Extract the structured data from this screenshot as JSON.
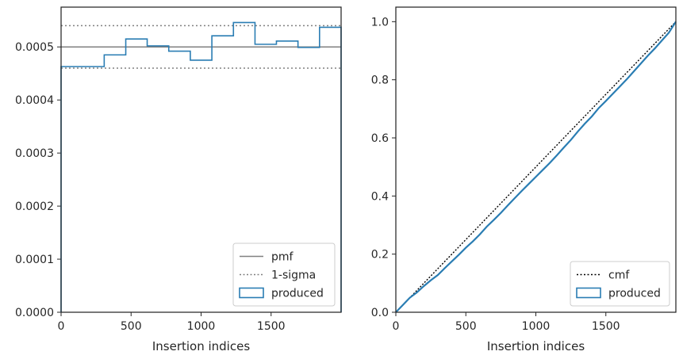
{
  "colors": {
    "produced": "#2a7db3",
    "pmf": "#808080",
    "sigma": "#808080",
    "cmf": "#000000",
    "axes": "#262626"
  },
  "chart_data": [
    {
      "type": "line",
      "xlabel": "Insertion indices",
      "ylabel": "",
      "xlim": [
        0,
        2000
      ],
      "ylim": [
        0,
        0.000575
      ],
      "xticks": [
        0,
        500,
        1000,
        1500
      ],
      "xtick_labels": [
        "0",
        "500",
        "1000",
        "1500"
      ],
      "yticks": [
        0,
        0.0001,
        0.0002,
        0.0003,
        0.0004,
        0.0005
      ],
      "ytick_labels": [
        "0.0000",
        "0.0001",
        "0.0002",
        "0.0003",
        "0.0004",
        "0.0005"
      ],
      "pmf": 0.0005,
      "sigma_band": [
        0.00046,
        0.00054
      ],
      "histogram": {
        "bin_edges": [
          0,
          308,
          462,
          615,
          769,
          923,
          1077,
          1231,
          1385,
          1538,
          1692,
          1846,
          2000
        ],
        "values": [
          0.000463,
          0.000485,
          0.000515,
          0.000502,
          0.000492,
          0.000475,
          0.000521,
          0.000546,
          0.000505,
          0.000511,
          0.000499,
          0.000537
        ]
      },
      "legend": {
        "position": "lower-right",
        "entries": [
          {
            "label": "pmf",
            "style": "solid-line"
          },
          {
            "label": "1-sigma",
            "style": "dotted-line"
          },
          {
            "label": "produced",
            "style": "patch"
          }
        ]
      }
    },
    {
      "type": "line",
      "xlabel": "Insertion indices",
      "ylabel": "",
      "xlim": [
        0,
        2000
      ],
      "ylim": [
        0,
        1.05
      ],
      "xticks": [
        0,
        500,
        1000,
        1500
      ],
      "xtick_labels": [
        "0",
        "500",
        "1000",
        "1500"
      ],
      "yticks": [
        0,
        0.2,
        0.4,
        0.6,
        0.8,
        1.0
      ],
      "ytick_labels": [
        "0.0",
        "0.2",
        "0.4",
        "0.6",
        "0.8",
        "1.0"
      ],
      "cmf": {
        "x": [
          0,
          2000
        ],
        "y": [
          0,
          1.0
        ]
      },
      "produced": {
        "x": [
          0,
          50,
          100,
          150,
          200,
          250,
          300,
          350,
          400,
          450,
          500,
          550,
          600,
          650,
          700,
          750,
          800,
          850,
          900,
          950,
          1000,
          1050,
          1100,
          1150,
          1200,
          1250,
          1300,
          1350,
          1400,
          1450,
          1500,
          1550,
          1600,
          1650,
          1700,
          1750,
          1800,
          1850,
          1900,
          1950,
          2000
        ],
        "y": [
          0,
          0.025,
          0.05,
          0.068,
          0.09,
          0.11,
          0.128,
          0.152,
          0.175,
          0.198,
          0.222,
          0.244,
          0.268,
          0.295,
          0.318,
          0.342,
          0.368,
          0.393,
          0.418,
          0.442,
          0.466,
          0.49,
          0.514,
          0.54,
          0.567,
          0.593,
          0.622,
          0.649,
          0.674,
          0.703,
          0.727,
          0.752,
          0.777,
          0.802,
          0.829,
          0.856,
          0.883,
          0.908,
          0.935,
          0.962,
          1.0
        ]
      },
      "legend": {
        "position": "lower-right",
        "entries": [
          {
            "label": "cmf",
            "style": "dotted-line"
          },
          {
            "label": "produced",
            "style": "patch"
          }
        ]
      }
    }
  ]
}
